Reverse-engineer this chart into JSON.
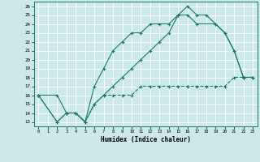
{
  "xlabel": "Humidex (Indice chaleur)",
  "xlim": [
    -0.5,
    23.5
  ],
  "ylim": [
    12.5,
    26.5
  ],
  "xticks": [
    0,
    1,
    2,
    3,
    4,
    5,
    6,
    7,
    8,
    9,
    10,
    11,
    12,
    13,
    14,
    15,
    16,
    17,
    18,
    19,
    20,
    21,
    22,
    23
  ],
  "yticks": [
    13,
    14,
    15,
    16,
    17,
    18,
    19,
    20,
    21,
    22,
    23,
    24,
    25,
    26
  ],
  "bg_color": "#cce8e8",
  "line_color": "#1a7a6a",
  "grid_color": "#ffffff",
  "line1_x": [
    0,
    2,
    3,
    4,
    5,
    6,
    7,
    8,
    9,
    10,
    11,
    12,
    13,
    14,
    15,
    16,
    17,
    18,
    19,
    20,
    21,
    22,
    23
  ],
  "line1_y": [
    16,
    16,
    14,
    14,
    13,
    17,
    19,
    21,
    22,
    23,
    23,
    24,
    24,
    24,
    25,
    26,
    25,
    25,
    24,
    23,
    21,
    18,
    18
  ],
  "line2_x": [
    0,
    2,
    3,
    4,
    5,
    6,
    7,
    8,
    9,
    10,
    11,
    12,
    13,
    14,
    15,
    16,
    17,
    19,
    20,
    21,
    22,
    23
  ],
  "line2_y": [
    16,
    13,
    14,
    14,
    13,
    15,
    16,
    17,
    18,
    19,
    20,
    21,
    22,
    23,
    25,
    25,
    24,
    24,
    23,
    21,
    18,
    18
  ],
  "line3_x": [
    0,
    2,
    3,
    4,
    5,
    6,
    7,
    8,
    9,
    10,
    11,
    12,
    13,
    14,
    15,
    16,
    17,
    18,
    19,
    20,
    21,
    22,
    23
  ],
  "line3_y": [
    16,
    13,
    14,
    14,
    13,
    15,
    16,
    16,
    16,
    16,
    17,
    17,
    17,
    17,
    17,
    17,
    17,
    17,
    17,
    17,
    18,
    18,
    18
  ]
}
